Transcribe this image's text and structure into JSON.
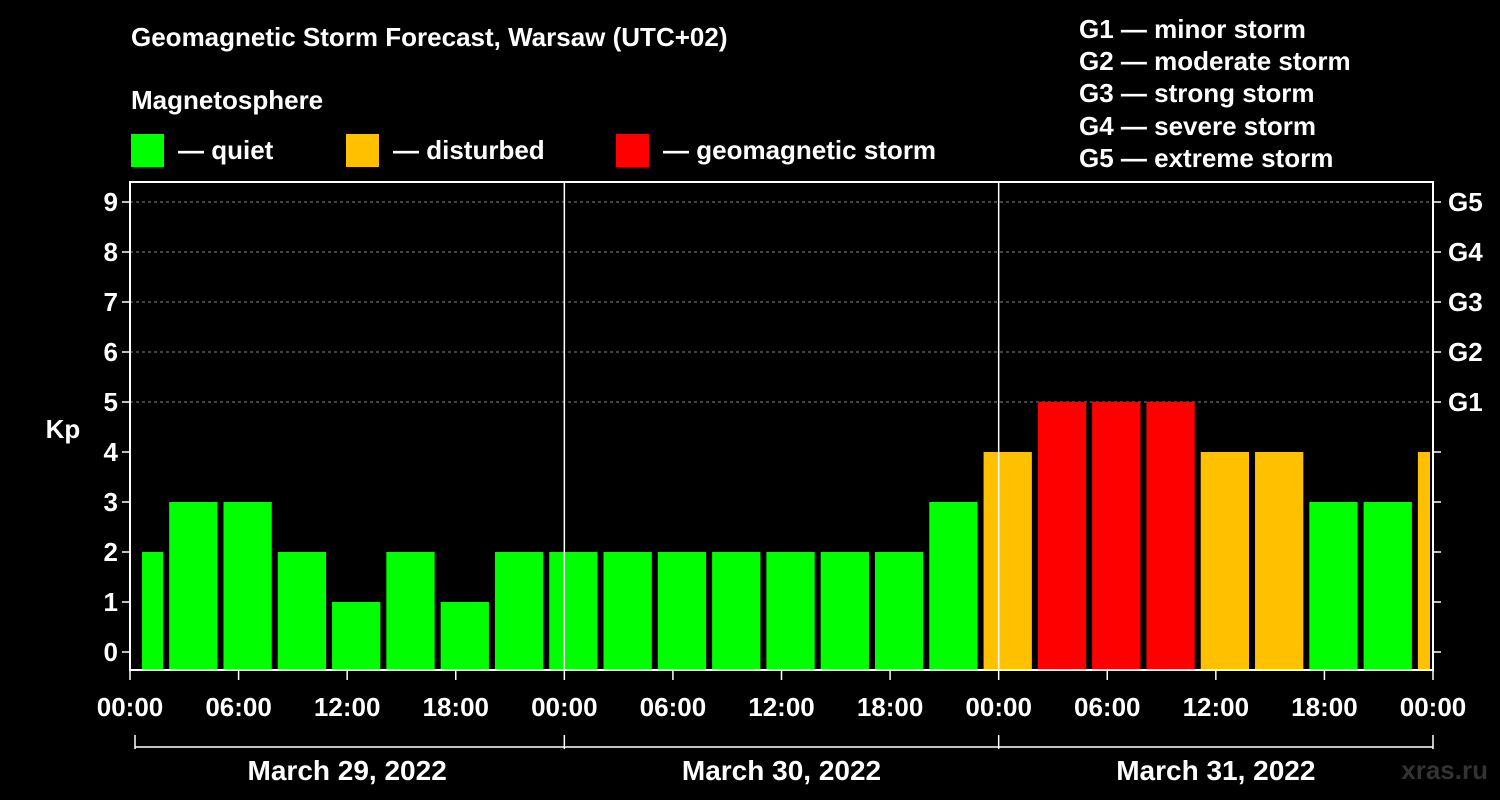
{
  "title": "Geomagnetic Storm Forecast, Warsaw (UTC+02)",
  "magnetosphere_label": "Magnetosphere",
  "legend": [
    {
      "label": "— quiet",
      "color": "#00ff00"
    },
    {
      "label": "— disturbed",
      "color": "#ffc000"
    },
    {
      "label": "— geomagnetic storm",
      "color": "#ff0000"
    }
  ],
  "storm_levels": [
    "G1 — minor storm",
    "G2 — moderate storm",
    "G3 — strong storm",
    "G4 — severe storm",
    "G5 — extreme storm"
  ],
  "watermark": "xras.ru",
  "chart_data": {
    "type": "bar",
    "ylabel": "Kp",
    "ylim": [
      0,
      9
    ],
    "yticks": [
      0,
      1,
      2,
      3,
      4,
      5,
      6,
      7,
      8,
      9
    ],
    "right_axis_labels": [
      {
        "kp": 5,
        "label": "G1"
      },
      {
        "kp": 6,
        "label": "G2"
      },
      {
        "kp": 7,
        "label": "G3"
      },
      {
        "kp": 8,
        "label": "G4"
      },
      {
        "kp": 9,
        "label": "G5"
      }
    ],
    "x_range_hours": [
      -0.5,
      71.5
    ],
    "xtick_labels": [
      "00:00",
      "06:00",
      "12:00",
      "18:00",
      "00:00",
      "06:00",
      "12:00",
      "18:00",
      "00:00",
      "06:00",
      "12:00",
      "18:00",
      "00:00"
    ],
    "days": [
      "March 29, 2022",
      "March 30, 2022",
      "March 31, 2022"
    ],
    "colors": {
      "quiet": "#00ff00",
      "disturbed": "#ffc000",
      "storm": "#ff0000"
    },
    "bars": [
      {
        "start": 0,
        "end": 1.5,
        "kp": 2
      },
      {
        "start": 1.5,
        "end": 4.5,
        "kp": 3
      },
      {
        "start": 4.5,
        "end": 7.5,
        "kp": 3
      },
      {
        "start": 7.5,
        "end": 10.5,
        "kp": 2
      },
      {
        "start": 10.5,
        "end": 13.5,
        "kp": 1
      },
      {
        "start": 13.5,
        "end": 16.5,
        "kp": 2
      },
      {
        "start": 16.5,
        "end": 19.5,
        "kp": 1
      },
      {
        "start": 19.5,
        "end": 22.5,
        "kp": 2
      },
      {
        "start": 22.5,
        "end": 25.5,
        "kp": 2
      },
      {
        "start": 25.5,
        "end": 28.5,
        "kp": 2
      },
      {
        "start": 28.5,
        "end": 31.5,
        "kp": 2
      },
      {
        "start": 31.5,
        "end": 34.5,
        "kp": 2
      },
      {
        "start": 34.5,
        "end": 37.5,
        "kp": 2
      },
      {
        "start": 37.5,
        "end": 40.5,
        "kp": 2
      },
      {
        "start": 40.5,
        "end": 43.5,
        "kp": 2
      },
      {
        "start": 43.5,
        "end": 46.5,
        "kp": 3
      },
      {
        "start": 46.5,
        "end": 49.5,
        "kp": 4
      },
      {
        "start": 49.5,
        "end": 52.5,
        "kp": 5
      },
      {
        "start": 52.5,
        "end": 55.5,
        "kp": 5
      },
      {
        "start": 55.5,
        "end": 58.5,
        "kp": 5
      },
      {
        "start": 58.5,
        "end": 61.5,
        "kp": 4
      },
      {
        "start": 61.5,
        "end": 64.5,
        "kp": 4
      },
      {
        "start": 64.5,
        "end": 67.5,
        "kp": 3
      },
      {
        "start": 67.5,
        "end": 70.5,
        "kp": 3
      },
      {
        "start": 70.5,
        "end": 71.5,
        "kp": 4
      }
    ]
  }
}
